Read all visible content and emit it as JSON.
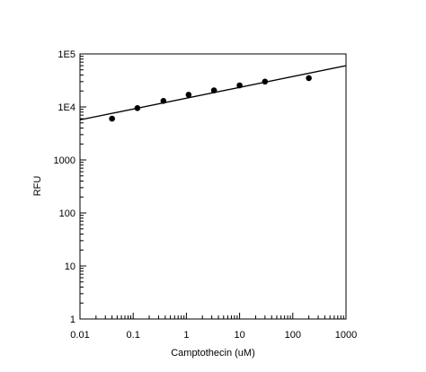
{
  "chart_data": {
    "type": "scatter",
    "title": "",
    "xlabel": "Camptothecin (uM)",
    "ylabel": "RFU",
    "xscale": "log",
    "yscale": "log",
    "xlim": [
      0.01,
      1000
    ],
    "ylim": [
      1,
      100000
    ],
    "grid": false,
    "x_ticks": [
      {
        "value": 0.01,
        "label": "0.01"
      },
      {
        "value": 0.1,
        "label": "0.1"
      },
      {
        "value": 1,
        "label": "1"
      },
      {
        "value": 10,
        "label": "10"
      },
      {
        "value": 100,
        "label": "100"
      },
      {
        "value": 1000,
        "label": "1000"
      }
    ],
    "y_ticks": [
      {
        "value": 1,
        "label": "1"
      },
      {
        "value": 10,
        "label": "10"
      },
      {
        "value": 100,
        "label": "100"
      },
      {
        "value": 1000,
        "label": "1000"
      },
      {
        "value": 10000,
        "label": "1E4"
      },
      {
        "value": 100000,
        "label": "1E5"
      }
    ],
    "series": [
      {
        "points": [
          {
            "x": 0.04,
            "y": 6000
          },
          {
            "x": 0.12,
            "y": 9500
          },
          {
            "x": 0.37,
            "y": 13000
          },
          {
            "x": 1.1,
            "y": 17000
          },
          {
            "x": 3.3,
            "y": 20500
          },
          {
            "x": 10,
            "y": 25500
          },
          {
            "x": 30,
            "y": 30000
          },
          {
            "x": 200,
            "y": 35000
          }
        ]
      }
    ],
    "fit_line": {
      "points": [
        {
          "x": 0.01,
          "y": 5700
        },
        {
          "x": 1000,
          "y": 60000
        }
      ]
    }
  }
}
